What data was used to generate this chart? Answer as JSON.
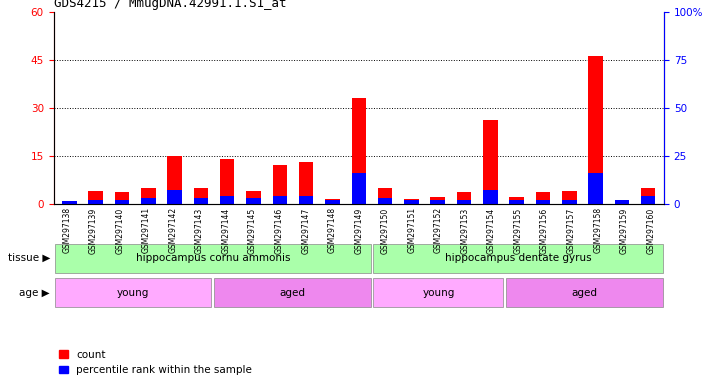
{
  "title": "GDS4215 / MmugDNA.42991.1.S1_at",
  "samples": [
    "GSM297138",
    "GSM297139",
    "GSM297140",
    "GSM297141",
    "GSM297142",
    "GSM297143",
    "GSM297144",
    "GSM297145",
    "GSM297146",
    "GSM297147",
    "GSM297148",
    "GSM297149",
    "GSM297150",
    "GSM297151",
    "GSM297152",
    "GSM297153",
    "GSM297154",
    "GSM297155",
    "GSM297156",
    "GSM297157",
    "GSM297158",
    "GSM297159",
    "GSM297160"
  ],
  "count": [
    0.3,
    4,
    3.5,
    5,
    15,
    5,
    14,
    4,
    12,
    13,
    1.5,
    33,
    5,
    1.5,
    2,
    3.5,
    26,
    2,
    3.5,
    4,
    46,
    0.8,
    5
  ],
  "percentile": [
    1.5,
    2,
    2,
    3,
    7,
    3,
    4,
    3,
    4,
    4,
    2,
    16,
    3,
    2,
    2,
    2,
    7,
    2,
    2,
    2,
    16,
    2,
    4
  ],
  "count_color": "#ff0000",
  "percentile_color": "#0000ff",
  "ylim_left": [
    0,
    60
  ],
  "ylim_right": [
    0,
    100
  ],
  "yticks_left": [
    0,
    15,
    30,
    45,
    60
  ],
  "yticks_right": [
    0,
    25,
    50,
    75,
    100
  ],
  "tissue_groups": [
    {
      "label": "hippocampus cornu ammonis",
      "start": 0,
      "end": 11,
      "color": "#aaffaa"
    },
    {
      "label": "hippocampus dentate gyrus",
      "start": 12,
      "end": 22,
      "color": "#aaffaa"
    }
  ],
  "age_groups": [
    {
      "label": "young",
      "start": 0,
      "end": 5,
      "color": "#ffaaff"
    },
    {
      "label": "aged",
      "start": 6,
      "end": 11,
      "color": "#ee88ee"
    },
    {
      "label": "young",
      "start": 12,
      "end": 16,
      "color": "#ffaaff"
    },
    {
      "label": "aged",
      "start": 17,
      "end": 22,
      "color": "#ee88ee"
    }
  ],
  "tissue_label": "tissue",
  "age_label": "age",
  "legend_count": "count",
  "legend_percentile": "percentile rank within the sample",
  "plot_bg": "#ffffff",
  "title_fontsize": 9,
  "grid_yticks": [
    15,
    30,
    45
  ]
}
